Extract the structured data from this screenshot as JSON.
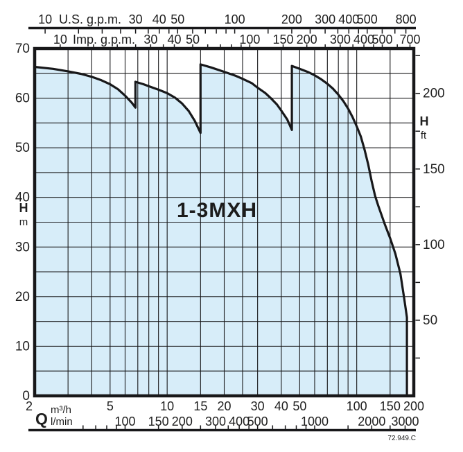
{
  "chart_data": {
    "type": "area",
    "series_label": "1-3MXH",
    "drawing_code": "72.949.C",
    "x_scale": {
      "type": "log",
      "unit": "m³/h",
      "min": 2,
      "max": 200
    },
    "y_scale": {
      "type": "linear",
      "unit": "m",
      "min": 0,
      "max": 70,
      "grid_step_m": 5
    },
    "axes": {
      "us_gpm": {
        "title": "U.S. g.p.m.",
        "gpm_per_m3h": 4.4029,
        "labeled_ticks": [
          10,
          30,
          40,
          50,
          100,
          200,
          300,
          400,
          500,
          800
        ],
        "minor_ticks": [
          15,
          20,
          25,
          35,
          45,
          60,
          70,
          80,
          90,
          150,
          250,
          350,
          450,
          600,
          700
        ]
      },
      "imp_gpm": {
        "title": "Imp. g.p.m.",
        "gpm_per_m3h": 3.6662,
        "labeled_ticks": [
          10,
          30,
          40,
          50,
          100,
          150,
          200,
          300,
          400,
          500,
          700
        ],
        "minor_ticks": [
          15,
          20,
          25,
          35,
          60,
          70,
          80,
          90,
          250,
          350,
          450,
          600
        ]
      },
      "h_m": {
        "title": "H",
        "unit": "m",
        "labeled_ticks": [
          0,
          10,
          20,
          30,
          40,
          50,
          60,
          70
        ]
      },
      "h_ft": {
        "title": "H",
        "unit": "ft",
        "ft_per_m": 3.2808,
        "labeled_ticks": [
          50,
          100,
          150,
          200
        ],
        "minor_ticks": [
          25,
          75,
          125,
          175,
          225
        ]
      },
      "q_m3h": {
        "title": "Q",
        "unit": "m³/h",
        "labeled_ticks": [
          2,
          5,
          10,
          15,
          20,
          30,
          40,
          50,
          100,
          150,
          200
        ]
      },
      "q_lmin": {
        "unit": "l/min",
        "lmin_per_m3h": 16.667,
        "labeled_ticks": [
          100,
          150,
          200,
          300,
          400,
          500,
          1000,
          2000,
          3000
        ],
        "minor_ticks": [
          60,
          70,
          80,
          90,
          250,
          350,
          450,
          600,
          700,
          800,
          900,
          1500,
          2500
        ]
      }
    },
    "grid_x_m3h": [
      3,
      4,
      5,
      6,
      7,
      8,
      9,
      10,
      15,
      20,
      25,
      30,
      40,
      50,
      60,
      70,
      80,
      90,
      100,
      150
    ],
    "envelope_Q_H": [
      [
        2,
        66.3
      ],
      [
        2.5,
        65.9
      ],
      [
        3,
        65.4
      ],
      [
        3.5,
        64.9
      ],
      [
        4,
        64.3
      ],
      [
        4.5,
        63.6
      ],
      [
        5,
        62.8
      ],
      [
        5.5,
        61.8
      ],
      [
        6,
        60.5
      ],
      [
        6.5,
        59.1
      ],
      [
        6.8,
        58.1
      ],
      [
        6.8,
        63.3
      ],
      [
        7.5,
        62.8
      ],
      [
        8,
        62.4
      ],
      [
        9,
        61.7
      ],
      [
        10,
        61.0
      ],
      [
        11,
        60.1
      ],
      [
        12,
        58.9
      ],
      [
        13,
        57.4
      ],
      [
        14,
        55.4
      ],
      [
        15,
        53.0
      ],
      [
        15,
        66.8
      ],
      [
        17,
        66.2
      ],
      [
        20,
        65.3
      ],
      [
        23,
        64.5
      ],
      [
        25,
        63.9
      ],
      [
        28,
        63.0
      ],
      [
        30,
        62.1
      ],
      [
        33,
        61.0
      ],
      [
        35,
        60.1
      ],
      [
        38,
        58.7
      ],
      [
        40,
        57.5
      ],
      [
        43,
        55.7
      ],
      [
        45.5,
        53.6
      ],
      [
        45.5,
        66.5
      ],
      [
        50,
        65.9
      ],
      [
        55,
        65.3
      ],
      [
        60,
        64.6
      ],
      [
        65,
        63.8
      ],
      [
        70,
        62.9
      ],
      [
        75,
        61.9
      ],
      [
        80,
        60.7
      ],
      [
        85,
        59.4
      ],
      [
        90,
        57.9
      ],
      [
        95,
        56.2
      ],
      [
        100,
        54.3
      ],
      [
        105,
        52.3
      ],
      [
        110,
        49.6
      ],
      [
        115,
        46.6
      ],
      [
        120,
        43.2
      ],
      [
        125,
        40.3
      ],
      [
        130,
        38.3
      ],
      [
        140,
        34.8
      ],
      [
        150,
        31.8
      ],
      [
        160,
        28.6
      ],
      [
        170,
        24.6
      ],
      [
        178,
        19.6
      ],
      [
        184,
        15.8
      ],
      [
        184,
        0
      ]
    ],
    "colors": {
      "envelope_fill": "#d7edf9",
      "line": "#18181a"
    }
  }
}
